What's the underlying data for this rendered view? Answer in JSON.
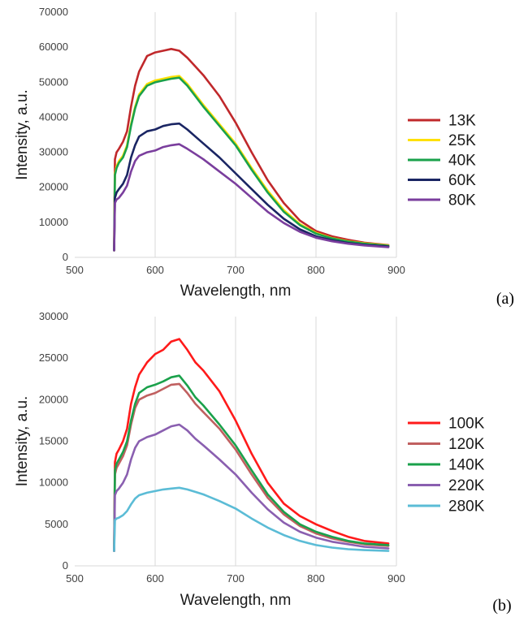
{
  "chart_data": [
    {
      "type": "line",
      "panel_label": "(a)",
      "xlabel": "Wavelength, nm",
      "ylabel": "Intensity, a.u.",
      "xlim": [
        500,
        900
      ],
      "ylim": [
        0,
        70000
      ],
      "xticks": [
        "500",
        "600",
        "700",
        "800",
        "900"
      ],
      "yticks": [
        "0",
        "10000",
        "20000",
        "30000",
        "40000",
        "50000",
        "60000",
        "70000"
      ],
      "grid": "vertical",
      "legend_position": "right",
      "x": [
        549,
        550,
        552,
        555,
        560,
        565,
        570,
        575,
        580,
        590,
        600,
        610,
        620,
        630,
        640,
        650,
        660,
        680,
        700,
        720,
        740,
        760,
        780,
        800,
        820,
        840,
        860,
        890
      ],
      "series": [
        {
          "name": "13K",
          "color": "#c0282b",
          "values": [
            2000,
            28000,
            30000,
            31000,
            33000,
            36000,
            43000,
            49000,
            53000,
            57500,
            58500,
            59000,
            59500,
            59000,
            57000,
            54500,
            52000,
            46000,
            38500,
            30000,
            22000,
            15500,
            10500,
            7500,
            6000,
            5000,
            4200,
            3500
          ]
        },
        {
          "name": "25K",
          "color": "#ffe000",
          "values": [
            2000,
            24000,
            26000,
            27500,
            29000,
            32000,
            38000,
            43000,
            46500,
            49500,
            50500,
            51000,
            51500,
            51800,
            49500,
            46500,
            43500,
            38000,
            32500,
            25500,
            19000,
            13500,
            9500,
            7000,
            5500,
            4600,
            4000,
            3400
          ]
        },
        {
          "name": "40K",
          "color": "#1aa14b",
          "values": [
            2000,
            23500,
            25500,
            27000,
            28500,
            31500,
            37500,
            42500,
            46000,
            49000,
            50000,
            50500,
            51000,
            51300,
            49000,
            46000,
            43000,
            37500,
            32000,
            25000,
            18500,
            13000,
            9200,
            6800,
            5400,
            4500,
            3900,
            3300
          ]
        },
        {
          "name": "60K",
          "color": "#1a2563",
          "values": [
            2000,
            17000,
            18500,
            19500,
            21000,
            23500,
            28500,
            32000,
            34500,
            36000,
            36500,
            37500,
            38000,
            38200,
            36500,
            34500,
            32500,
            28500,
            24000,
            19500,
            15000,
            11000,
            8000,
            6000,
            4900,
            4100,
            3600,
            3100
          ]
        },
        {
          "name": "80K",
          "color": "#7a3e9d",
          "values": [
            2000,
            15500,
            16500,
            17000,
            18500,
            20500,
            24500,
            27500,
            29000,
            30000,
            30500,
            31500,
            32000,
            32300,
            31000,
            29500,
            28000,
            24500,
            21000,
            17000,
            13000,
            9800,
            7300,
            5600,
            4600,
            3900,
            3400,
            2900
          ]
        }
      ]
    },
    {
      "type": "line",
      "panel_label": "(b)",
      "xlabel": "Wavelength, nm",
      "ylabel": "Intensity, a.u.",
      "xlim": [
        500,
        900
      ],
      "ylim": [
        0,
        30000
      ],
      "xticks": [
        "500",
        "600",
        "700",
        "800",
        "900"
      ],
      "yticks": [
        "0",
        "5000",
        "10000",
        "15000",
        "20000",
        "25000",
        "30000"
      ],
      "grid": "vertical",
      "legend_position": "right",
      "x": [
        549,
        550,
        552,
        555,
        560,
        565,
        570,
        575,
        580,
        590,
        600,
        610,
        620,
        630,
        640,
        650,
        660,
        680,
        700,
        720,
        740,
        760,
        780,
        800,
        820,
        840,
        860,
        890
      ],
      "series": [
        {
          "name": "100K",
          "color": "#ff1a1a",
          "values": [
            1800,
            12500,
            13500,
            14000,
            15000,
            16500,
            19500,
            21500,
            23000,
            24500,
            25500,
            26000,
            27000,
            27300,
            26000,
            24500,
            23500,
            21000,
            17500,
            13500,
            10000,
            7500,
            6000,
            5000,
            4200,
            3500,
            3000,
            2700
          ]
        },
        {
          "name": "120K",
          "color": "#c06060",
          "values": [
            1800,
            11000,
            11800,
            12300,
            13200,
            14500,
            17000,
            19000,
            20000,
            20500,
            20800,
            21300,
            21800,
            21900,
            20800,
            19500,
            18500,
            16500,
            14000,
            11000,
            8200,
            6200,
            4800,
            3900,
            3300,
            2900,
            2600,
            2400
          ]
        },
        {
          "name": "140K",
          "color": "#1aa14b",
          "values": [
            1800,
            11500,
            12300,
            12800,
            13700,
            15000,
            17500,
            19500,
            20800,
            21500,
            21800,
            22200,
            22700,
            22900,
            21700,
            20300,
            19300,
            17000,
            14500,
            11500,
            8600,
            6500,
            5000,
            4100,
            3500,
            3000,
            2700,
            2500
          ]
        },
        {
          "name": "220K",
          "color": "#8a5fb0",
          "values": [
            1800,
            8500,
            9000,
            9300,
            10000,
            11000,
            12800,
            14200,
            15000,
            15500,
            15800,
            16300,
            16800,
            17000,
            16300,
            15300,
            14500,
            12800,
            11000,
            8800,
            6800,
            5200,
            4100,
            3400,
            2900,
            2600,
            2300,
            2100
          ]
        },
        {
          "name": "280K",
          "color": "#5bbcd6",
          "values": [
            1800,
            5500,
            5700,
            5800,
            6100,
            6600,
            7400,
            8100,
            8500,
            8800,
            9000,
            9200,
            9300,
            9400,
            9200,
            8900,
            8600,
            7800,
            6900,
            5700,
            4600,
            3700,
            3000,
            2500,
            2200,
            2000,
            1900,
            1800
          ]
        }
      ]
    }
  ]
}
